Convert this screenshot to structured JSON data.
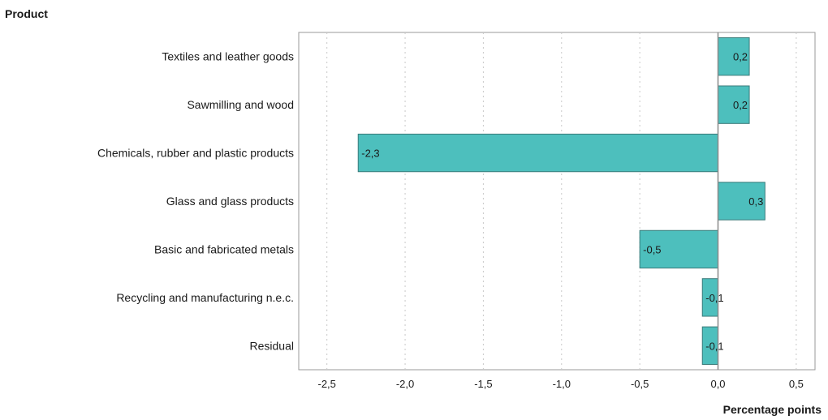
{
  "chart_data": {
    "type": "bar",
    "orientation": "horizontal",
    "category_axis_title": "Product",
    "value_axis_title": "Percentage points",
    "categories": [
      "Textiles and leather goods",
      "Sawmilling and wood",
      "Chemicals, rubber and plastic products",
      "Glass and glass products",
      "Basic and fabricated metals",
      "Recycling and manufacturing n.e.c.",
      "Residual"
    ],
    "values": [
      0.2,
      0.2,
      -2.3,
      0.3,
      -0.5,
      -0.1,
      -0.1
    ],
    "value_labels": [
      "0,2",
      "0,2",
      "-2,3",
      "0,3",
      "-0,5",
      "-0,1",
      "-0,1"
    ],
    "xticks": [
      -2.5,
      -2.0,
      -1.5,
      -1.0,
      -0.5,
      0.0,
      0.5
    ],
    "xtick_labels": [
      "-2,5",
      "-2,0",
      "-1,5",
      "-1,0",
      "-0,5",
      "0,0",
      "0,5"
    ],
    "xlim": [
      -2.68,
      0.62
    ],
    "grid": "vertical dotted",
    "colors": {
      "bar_fill": "#4dbfbd",
      "bar_stroke": "#3a7b7a",
      "axis": "#9a9a9a",
      "grid": "#c9c9c9"
    }
  }
}
